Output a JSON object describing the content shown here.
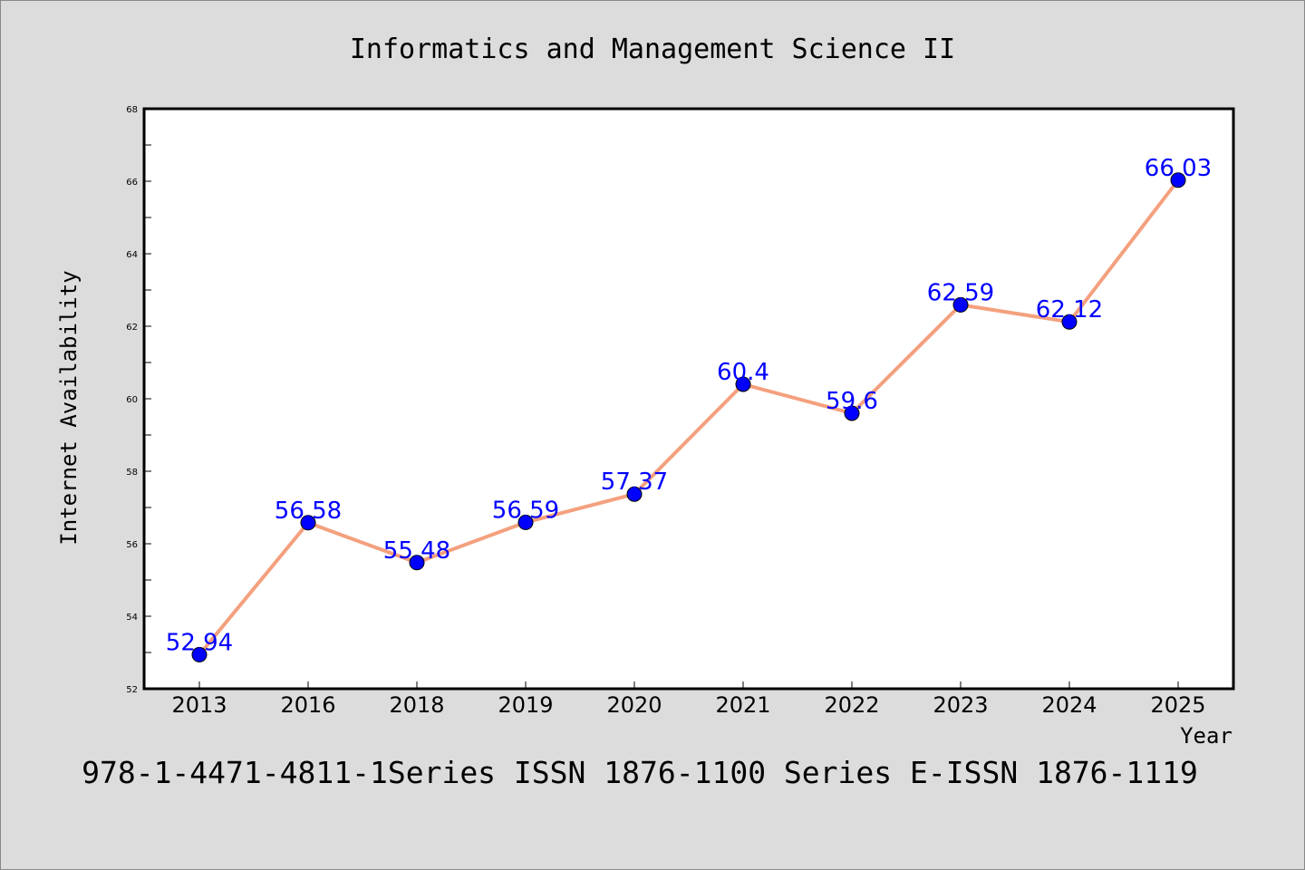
{
  "chart_data": {
    "type": "line",
    "title": "Informatics and Management Science II",
    "xlabel": "Year",
    "ylabel": "Internet Availability",
    "categories": [
      "2013",
      "2016",
      "2018",
      "2019",
      "2020",
      "2021",
      "2022",
      "2023",
      "2024",
      "2025"
    ],
    "series": [
      {
        "values": [
          52.94,
          56.58,
          55.48,
          56.59,
          57.37,
          60.4,
          59.6,
          62.59,
          62.12,
          66.03
        ],
        "labels": [
          "52.94",
          "56.58",
          "55.48",
          "56.59",
          "57.37",
          "60.4",
          "59.6",
          "62.59",
          "62.12",
          "66.03"
        ]
      }
    ],
    "ylim": [
      52,
      68
    ],
    "yticks": [
      "52",
      "54",
      "56",
      "58",
      "60",
      "62",
      "64",
      "66",
      "68"
    ],
    "grid": false,
    "colors": {
      "background": "#dcdcdc",
      "plot_background": "#ffffff",
      "line": "#f4a07e",
      "marker": "#0000ff",
      "label": "#0000ff"
    }
  },
  "footer": "978-1-4471-4811-1Series ISSN 1876-1100 Series E-ISSN 1876-1119"
}
